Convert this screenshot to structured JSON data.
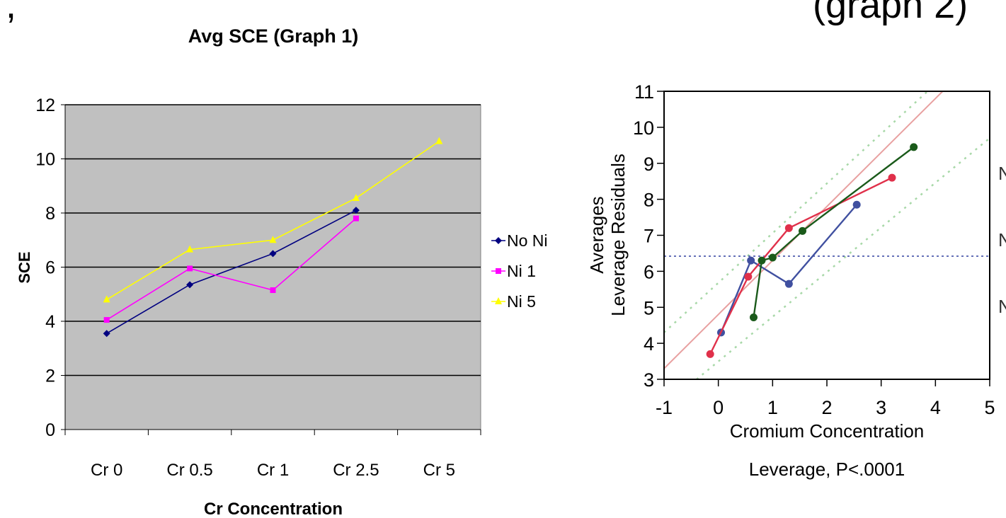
{
  "heading": {
    "left_fragment": ",",
    "right_fragment": "(graph 2)"
  },
  "chart_data": [
    {
      "type": "line",
      "title": "Avg SCE (Graph 1)",
      "xlabel": "Cr Concentration",
      "ylabel": "SCE",
      "categories": [
        "Cr 0",
        "Cr 0.5",
        "Cr 1",
        "Cr 2.5",
        "Cr 5"
      ],
      "ylim": [
        0,
        12
      ],
      "yticks": [
        0,
        2,
        4,
        6,
        8,
        10,
        12
      ],
      "grid": true,
      "legend_position": "right",
      "plot_background": "#c0c0c0",
      "series": [
        {
          "name": "No Ni",
          "color": "#000080",
          "marker": "diamond",
          "values": [
            3.55,
            5.35,
            6.5,
            8.1,
            null
          ]
        },
        {
          "name": "Ni 1",
          "color": "#ff00ff",
          "marker": "square",
          "values": [
            4.05,
            5.95,
            5.15,
            7.8,
            null
          ]
        },
        {
          "name": "Ni 5",
          "color": "#ffff00",
          "marker": "triangle",
          "values": [
            4.8,
            6.65,
            7.0,
            8.55,
            10.65
          ]
        }
      ]
    },
    {
      "type": "scatter",
      "title": "",
      "xlabel": "Cromium Concentration",
      "ylabel": "Averages Leverage Residuals",
      "ylabel_lines": [
        "Averages",
        "Leverage Residuals"
      ],
      "caption": "Leverage, P<.0001",
      "xlim": [
        -1,
        5
      ],
      "ylim": [
        3,
        11
      ],
      "xticks": [
        -1,
        0,
        1,
        2,
        3,
        4,
        5
      ],
      "yticks": [
        3,
        4,
        5,
        6,
        7,
        8,
        9,
        10,
        11
      ],
      "grid": false,
      "mean_line": 6.42,
      "fit_line": {
        "color": "#e8a0a0",
        "points": [
          [
            -1,
            3.3
          ],
          [
            5,
            12.3
          ]
        ]
      },
      "confidence_bands": {
        "color": "#a8d8a8",
        "upper": [
          [
            -1,
            4.3
          ],
          [
            4,
            11.2
          ]
        ],
        "lower": [
          [
            -0.4,
            3.0
          ],
          [
            5,
            9.7
          ]
        ]
      },
      "right_labels": [
        "N",
        "N",
        "N"
      ],
      "series": [
        {
          "color": "#4050a0",
          "x": [
            0.05,
            0.6,
            1.3,
            2.55
          ],
          "y": [
            4.3,
            6.3,
            5.65,
            7.85
          ]
        },
        {
          "color": "#e0304a",
          "x": [
            -0.15,
            0.55,
            1.3,
            3.2
          ],
          "y": [
            3.7,
            5.85,
            7.2,
            8.6
          ]
        },
        {
          "color": "#1a5a1a",
          "x": [
            0.65,
            0.8,
            1.0,
            1.55,
            3.6
          ],
          "y": [
            4.72,
            6.3,
            6.38,
            7.12,
            9.45
          ]
        }
      ]
    }
  ]
}
